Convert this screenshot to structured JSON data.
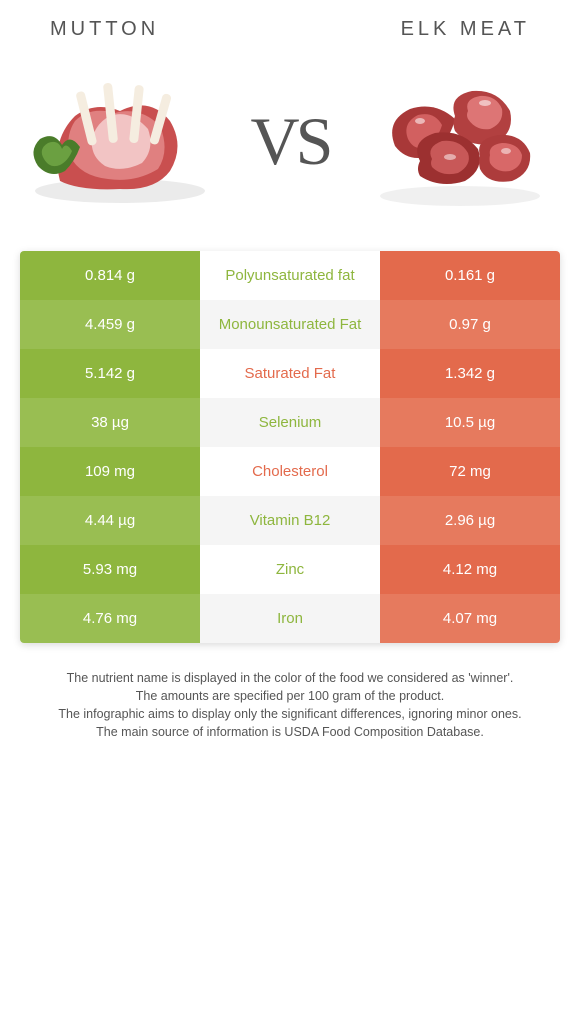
{
  "titles": {
    "left": "MUTTON",
    "right": "ELK MEAT"
  },
  "vs": "VS",
  "colors": {
    "left_a": "#8eb63e",
    "left_b": "#99be52",
    "right_a": "#e36a4c",
    "right_b": "#e67a5e",
    "mid_a": "#ffffff",
    "mid_b": "#f5f5f5",
    "winner_left": "#8eb63e",
    "winner_right": "#e36a4c",
    "text": "#555555"
  },
  "rows": [
    {
      "left": "0.814 g",
      "label": "Polyunsaturated fat",
      "right": "0.161 g",
      "winner": "left"
    },
    {
      "left": "4.459 g",
      "label": "Monounsaturated Fat",
      "right": "0.97 g",
      "winner": "left"
    },
    {
      "left": "5.142 g",
      "label": "Saturated Fat",
      "right": "1.342 g",
      "winner": "right"
    },
    {
      "left": "38 µg",
      "label": "Selenium",
      "right": "10.5 µg",
      "winner": "left"
    },
    {
      "left": "109 mg",
      "label": "Cholesterol",
      "right": "72 mg",
      "winner": "right"
    },
    {
      "left": "4.44 µg",
      "label": "Vitamin B12",
      "right": "2.96 µg",
      "winner": "left"
    },
    {
      "left": "5.93 mg",
      "label": "Zinc",
      "right": "4.12 mg",
      "winner": "left"
    },
    {
      "left": "4.76 mg",
      "label": "Iron",
      "right": "4.07 mg",
      "winner": "left"
    }
  ],
  "footer": [
    "The nutrient name is displayed in the color of the food we considered as 'winner'.",
    "The amounts are specified per 100 gram of the product.",
    "The infographic aims to display only the significant differences, ignoring minor ones.",
    "The main source of information is USDA Food Composition Database."
  ]
}
